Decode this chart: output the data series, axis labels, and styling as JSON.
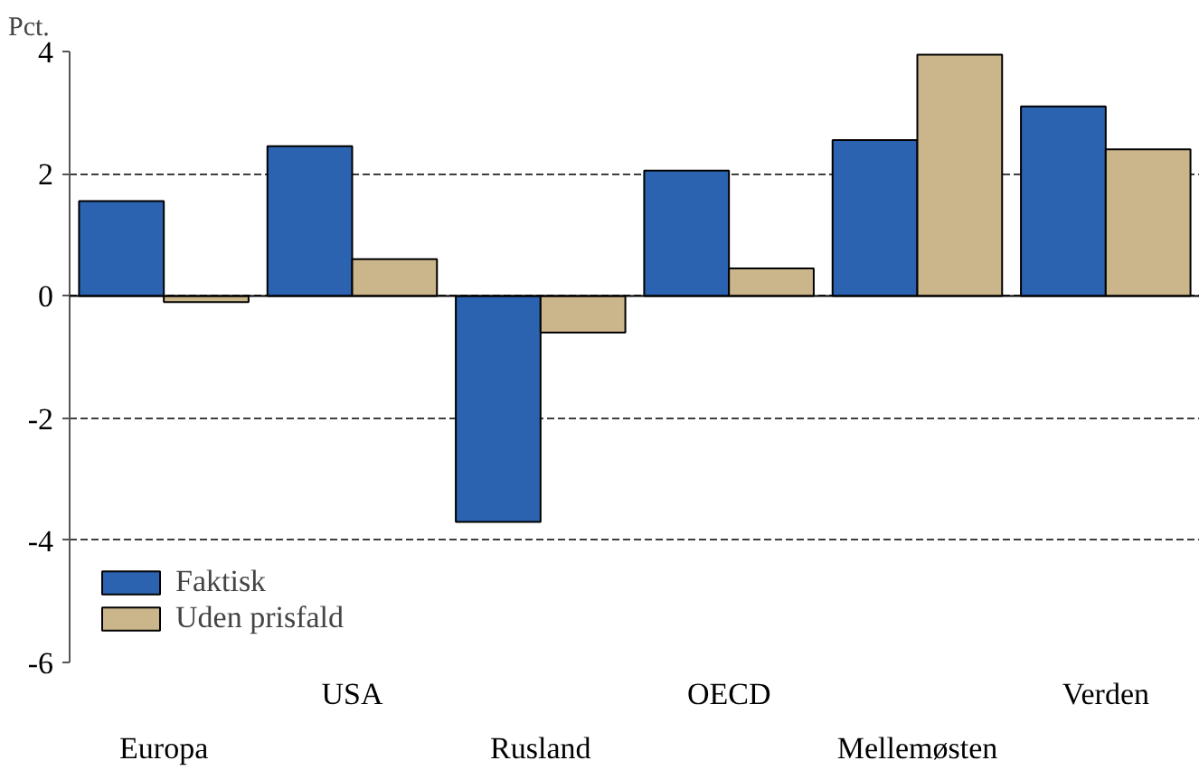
{
  "chart_data": {
    "type": "bar",
    "ylabel": "Pct.",
    "categories": [
      "Europa",
      "USA",
      "Rusland",
      "OECD",
      "Mellemøsten",
      "Verden"
    ],
    "series": [
      {
        "name": "Faktisk",
        "color": "#2b63b0",
        "values": [
          1.55,
          2.45,
          -3.7,
          2.05,
          2.55,
          3.1
        ]
      },
      {
        "name": "Uden prisfald",
        "color": "#cbb68b",
        "values": [
          -0.1,
          0.6,
          -0.6,
          0.45,
          3.95,
          2.4
        ]
      }
    ],
    "ylim": [
      -6,
      4
    ],
    "yticks": [
      -6,
      -4,
      -2,
      0,
      2,
      4
    ],
    "grid": "y",
    "legend": "bottom left"
  }
}
